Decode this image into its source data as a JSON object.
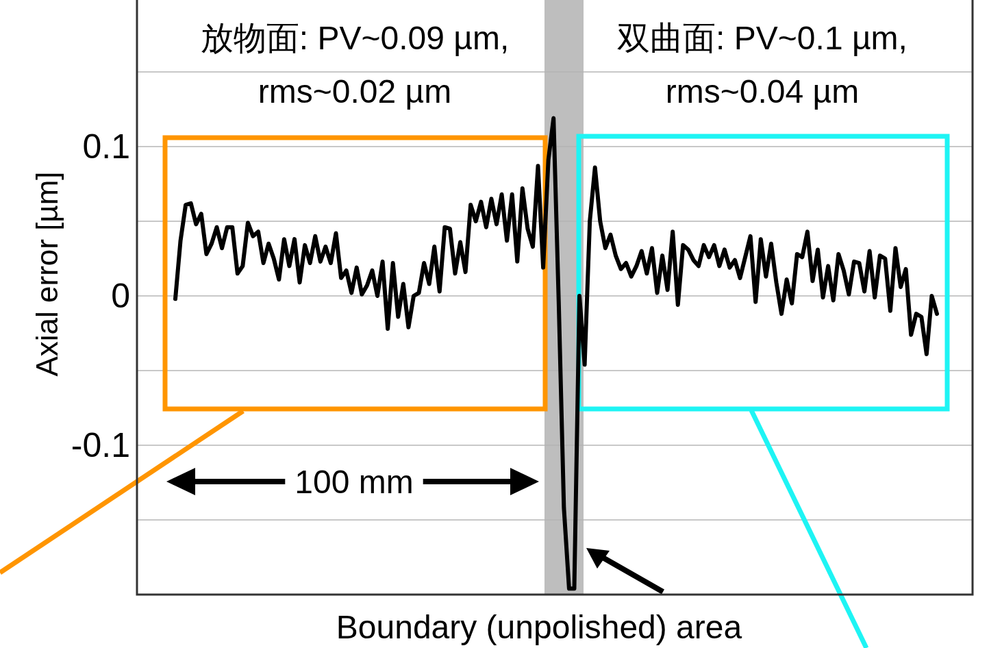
{
  "chart_data": {
    "type": "line",
    "ylabel": "Axial error [µm]",
    "categories": [
      null,
      null,
      null,
      null,
      null,
      null,
      null,
      null,
      null,
      null,
      null,
      null,
      null,
      null,
      null,
      null,
      null,
      null,
      null,
      null,
      null,
      null,
      null,
      null,
      null,
      null,
      null,
      null,
      null,
      null,
      null,
      null,
      null,
      null,
      null,
      null,
      null,
      null,
      null,
      null,
      null,
      null,
      null,
      null,
      null,
      null,
      null,
      null,
      null,
      null,
      null,
      null,
      null,
      null,
      null,
      null,
      null,
      null,
      null,
      null,
      null,
      null,
      null,
      null,
      null,
      null,
      null,
      null,
      null,
      null,
      null,
      null,
      null,
      null,
      null,
      null,
      null,
      null,
      null,
      null,
      null,
      null,
      null,
      null,
      null,
      null,
      null,
      null,
      null,
      null,
      null,
      null,
      null,
      null,
      null,
      null,
      null,
      null,
      null,
      null,
      null,
      null,
      null,
      null,
      null,
      null,
      null,
      null,
      null,
      null,
      null,
      null,
      null,
      null,
      null,
      null,
      null,
      null,
      null,
      null,
      null,
      null,
      null,
      null,
      null,
      null,
      null,
      null,
      null,
      null,
      null,
      null,
      null,
      null,
      null,
      null,
      null,
      null,
      null,
      null,
      null,
      null,
      null,
      null,
      null,
      null,
      null,
      null
    ],
    "ylim": [
      -0.2,
      0.2
    ],
    "yticks": [
      {
        "value": -0.15,
        "label": null
      },
      -0.1,
      {
        "value": -0.05,
        "label": null
      },
      0,
      {
        "value": 0.05,
        "label": null
      },
      0.1,
      {
        "value": 0.15,
        "label": null
      }
    ],
    "tick_labels": "y",
    "grid": "y",
    "line_style": "solid",
    "series": [
      {
        "color": "#000000",
        "values": [
          -0.002,
          0.037,
          0.061,
          0.062,
          0.048,
          0.055,
          0.028,
          0.035,
          0.046,
          0.032,
          0.046,
          0.046,
          0.015,
          0.02,
          0.049,
          0.04,
          0.043,
          0.022,
          0.035,
          0.025,
          0.011,
          0.038,
          0.02,
          0.038,
          0.009,
          0.034,
          0.022,
          0.04,
          0.023,
          0.033,
          0.022,
          0.042,
          0.012,
          0.017,
          0.002,
          0.019,
          0.001,
          0.007,
          0.017,
          0.0,
          0.023,
          -0.022,
          0.022,
          -0.014,
          0.008,
          -0.021,
          0.0,
          0.002,
          0.022,
          0.008,
          0.033,
          0.003,
          0.046,
          0.045,
          0.015,
          0.036,
          0.016,
          0.061,
          0.05,
          0.063,
          0.046,
          0.065,
          0.048,
          0.068,
          0.037,
          0.068,
          0.023,
          0.072,
          0.045,
          0.033,
          0.087,
          0.019,
          0.091,
          0.119,
          -0.004,
          -0.142,
          -0.196,
          -0.196,
          0.0,
          -0.046,
          0.05,
          0.086,
          0.05,
          0.032,
          0.041,
          0.027,
          0.018,
          0.022,
          0.013,
          0.02,
          0.03,
          0.015,
          0.032,
          0.002,
          0.027,
          0.004,
          0.043,
          -0.006,
          0.034,
          0.031,
          0.024,
          0.02,
          0.034,
          0.026,
          0.034,
          0.02,
          0.031,
          0.019,
          0.024,
          0.012,
          0.026,
          0.04,
          -0.004,
          0.038,
          0.013,
          0.035,
          0.009,
          -0.012,
          0.011,
          -0.005,
          0.028,
          0.026,
          0.043,
          0.01,
          0.031,
          -0.001,
          0.02,
          -0.003,
          0.028,
          0.017,
          0.001,
          0.023,
          0.022,
          0.003,
          0.03,
          -0.001,
          0.027,
          0.025,
          -0.01,
          0.032,
          0.006,
          0.018,
          -0.026,
          -0.012,
          -0.014,
          -0.039,
          0.0,
          -0.012
        ]
      }
    ],
    "annotations": [
      "放物面: PV~0.09 µm,",
      "rms~0.02 µm",
      "双曲面: PV~0.1 µm,",
      "rms~0.04 µm",
      "100 mm",
      "Boundary (unpolished) area"
    ]
  }
}
